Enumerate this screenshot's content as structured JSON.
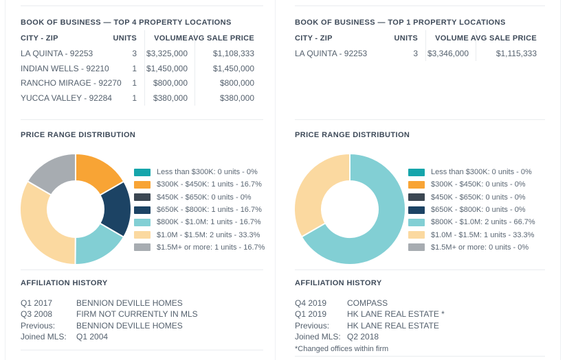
{
  "colors": {
    "divider": "#e9ecef",
    "title_text": "#3e4a59",
    "body_text": "#55616e",
    "band_teal": "#16a5ab",
    "band_orange": "#f8a435",
    "band_charcoal": "#3c4752",
    "band_navy": "#1c4364",
    "band_light_teal": "#82cfd4",
    "band_peach": "#fbd9a0",
    "band_gray": "#a7acb1"
  },
  "panels": [
    {
      "book_title": "BOOK OF BUSINESS — TOP 4 PROPERTY LOCATIONS",
      "table": {
        "headers": [
          "CITY - ZIP",
          "UNITS",
          "VOLUME",
          "AVG SALE PRICE"
        ],
        "rows": [
          {
            "city": "LA QUINTA - 92253",
            "units": "3",
            "volume": "$3,325,000",
            "avg": "$1,108,333"
          },
          {
            "city": "INDIAN WELLS - 92210",
            "units": "1",
            "volume": "$1,450,000",
            "avg": "$1,450,000"
          },
          {
            "city": "RANCHO MIRAGE - 92270",
            "units": "1",
            "volume": "$800,000",
            "avg": "$800,000"
          },
          {
            "city": "YUCCA VALLEY - 92284",
            "units": "1",
            "volume": "$380,000",
            "avg": "$380,000"
          }
        ]
      },
      "price_title": "PRICE RANGE DISTRIBUTION",
      "legend": [
        {
          "label": "Less than $300K: 0 units - 0%",
          "color": "#16a5ab"
        },
        {
          "label": "$300K - $450K: 1 units - 16.7%",
          "color": "#f8a435"
        },
        {
          "label": "$450K - $650K: 0 units - 0%",
          "color": "#3c4752"
        },
        {
          "label": "$650K - $800K: 1 units - 16.7%",
          "color": "#1c4364"
        },
        {
          "label": "$800K - $1.0M: 1 units - 16.7%",
          "color": "#82cfd4"
        },
        {
          "label": "$1.0M - $1.5M: 2 units - 33.3%",
          "color": "#fbd9a0"
        },
        {
          "label": "$1.5M+ or more: 1 units - 16.7%",
          "color": "#a7acb1"
        }
      ],
      "affiliation_title": "AFFILIATION HISTORY",
      "affiliations": [
        {
          "label": "Q1 2017",
          "value": "BENNION DEVILLE HOMES"
        },
        {
          "label": "Q3 2008",
          "value": "FIRM NOT CURRENTLY IN MLS"
        },
        {
          "label": "Previous:",
          "value": "BENNION DEVILLE HOMES"
        },
        {
          "label": "Joined MLS:",
          "value": "Q1 2004"
        }
      ]
    },
    {
      "book_title": "BOOK OF BUSINESS — TOP 1 PROPERTY LOCATIONS",
      "table": {
        "headers": [
          "CITY - ZIP",
          "UNITS",
          "VOLUME",
          "AVG SALE PRICE"
        ],
        "rows": [
          {
            "city": "LA QUINTA - 92253",
            "units": "3",
            "volume": "$3,346,000",
            "avg": "$1,115,333"
          }
        ]
      },
      "price_title": "PRICE RANGE DISTRIBUTION",
      "legend": [
        {
          "label": "Less than $300K: 0 units - 0%",
          "color": "#16a5ab"
        },
        {
          "label": "$300K - $450K: 0 units - 0%",
          "color": "#f8a435"
        },
        {
          "label": "$450K - $650K: 0 units - 0%",
          "color": "#3c4752"
        },
        {
          "label": "$650K - $800K: 0 units - 0%",
          "color": "#1c4364"
        },
        {
          "label": "$800K - $1.0M: 2 units - 66.7%",
          "color": "#82cfd4"
        },
        {
          "label": "$1.0M - $1.5M: 1 units - 33.3%",
          "color": "#fbd9a0"
        },
        {
          "label": "$1.5M+ or more: 0 units - 0%",
          "color": "#a7acb1"
        }
      ],
      "affiliation_title": "AFFILIATION HISTORY",
      "affiliations": [
        {
          "label": "Q4 2019",
          "value": "COMPASS"
        },
        {
          "label": "Q1 2019",
          "value": "HK LANE REAL ESTATE *"
        },
        {
          "label": "Previous:",
          "value": "HK LANE REAL ESTATE"
        },
        {
          "label": "Joined MLS:",
          "value": "Q2 2018"
        }
      ],
      "footnote": "*Changed offices within firm"
    }
  ],
  "chart_data": [
    {
      "type": "pie",
      "subtype": "donut",
      "title": "Price Range Distribution (Top 4 locations panel)",
      "labels": [
        "Less than $300K",
        "$300K - $450K",
        "$450K - $650K",
        "$650K - $800K",
        "$800K - $1.0M",
        "$1.0M - $1.5M",
        "$1.5M+ or more"
      ],
      "units": [
        0,
        1,
        0,
        1,
        1,
        2,
        1
      ],
      "percents": [
        0,
        16.7,
        0,
        16.7,
        16.7,
        33.3,
        16.7
      ],
      "colors": [
        "#16a5ab",
        "#f8a435",
        "#3c4752",
        "#1c4364",
        "#82cfd4",
        "#fbd9a0",
        "#a7acb1"
      ],
      "legend_position": "right",
      "start_angle": "top",
      "direction": "clockwise"
    },
    {
      "type": "pie",
      "subtype": "donut",
      "title": "Price Range Distribution (Top 1 location panel)",
      "labels": [
        "Less than $300K",
        "$300K - $450K",
        "$450K - $650K",
        "$650K - $800K",
        "$800K - $1.0M",
        "$1.0M - $1.5M",
        "$1.5M+ or more"
      ],
      "units": [
        0,
        0,
        0,
        0,
        2,
        1,
        0
      ],
      "percents": [
        0,
        0,
        0,
        0,
        66.7,
        33.3,
        0
      ],
      "colors": [
        "#16a5ab",
        "#f8a435",
        "#3c4752",
        "#1c4364",
        "#82cfd4",
        "#fbd9a0",
        "#a7acb1"
      ],
      "legend_position": "right",
      "start_angle": "top",
      "direction": "clockwise"
    }
  ]
}
